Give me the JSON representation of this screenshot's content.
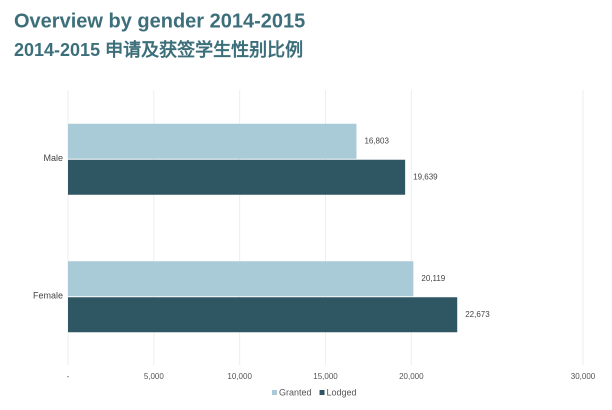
{
  "chart_data": {
    "type": "hbar",
    "title": "Overview by gender 2014-2015",
    "subtitle": "2014-2015 申请及获签学生性别比例",
    "categories": [
      "Male",
      "Female"
    ],
    "series": [
      {
        "name": "Granted",
        "color": "#a9cbd8",
        "values": [
          16803,
          20119
        ],
        "value_labels": [
          "16,803",
          "20,119"
        ]
      },
      {
        "name": "Lodged",
        "color": "#2f5663",
        "values": [
          19639,
          22673
        ],
        "value_labels": [
          "19,639",
          "22,673"
        ]
      }
    ],
    "xlim": [
      0,
      30000
    ],
    "xticks": [
      {
        "value": 0,
        "label": "-"
      },
      {
        "value": 5000,
        "label": "5,000"
      },
      {
        "value": 10000,
        "label": "10,000"
      },
      {
        "value": 15000,
        "label": "15,000"
      },
      {
        "value": 20000,
        "label": "20,000"
      },
      {
        "value": 30000,
        "label": "30,000"
      }
    ],
    "grid": true,
    "legend": "bottom"
  }
}
